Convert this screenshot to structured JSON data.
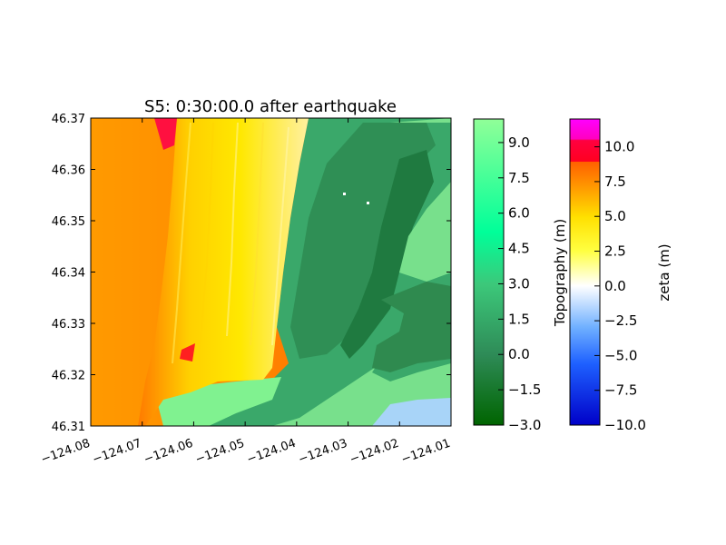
{
  "chart_data": {
    "type": "heatmap",
    "title": "S5: 0:30:00.0 after earthquake",
    "x": {
      "ticks": [
        -124.08,
        -124.07,
        -124.06,
        -124.05,
        -124.04,
        -124.03,
        -124.02,
        -124.01
      ],
      "tick_labels": [
        "−124.08",
        "−124.07",
        "−124.06",
        "−124.05",
        "−124.04",
        "−124.03",
        "−124.02",
        "−124.01"
      ],
      "range": [
        -124.08,
        -124.01
      ]
    },
    "y": {
      "ticks": [
        46.31,
        46.32,
        46.33,
        46.34,
        46.35,
        46.36,
        46.37
      ],
      "tick_labels": [
        "46.31",
        "46.32",
        "46.33",
        "46.34",
        "46.35",
        "46.36",
        "46.37"
      ],
      "range": [
        46.31,
        46.37
      ]
    },
    "colorbars": [
      {
        "label": "Topography (m)",
        "range": [
          -3.0,
          10.0
        ],
        "ticks": [
          -3.0,
          -1.5,
          0.0,
          1.5,
          3.0,
          4.5,
          6.0,
          7.5,
          9.0
        ],
        "tick_labels": [
          "−3.0",
          "−1.5",
          "0.0",
          "1.5",
          "3.0",
          "4.5",
          "6.0",
          "7.5",
          "9.0"
        ],
        "colormap": [
          "#006400",
          "#3cb371",
          "#00ff99",
          "#90ff98"
        ]
      },
      {
        "label": "zeta (m)",
        "range": [
          -10.0,
          12.0
        ],
        "ticks": [
          -10.0,
          -7.5,
          -5.0,
          -2.5,
          0.0,
          2.5,
          5.0,
          7.5,
          10.0
        ],
        "tick_labels": [
          "−10.0",
          "−7.5",
          "−5.0",
          "−2.5",
          "0.0",
          "2.5",
          "5.0",
          "7.5",
          "10.0"
        ],
        "colormap": [
          "#0000c8",
          "#1e90ff",
          "#ffffff",
          "#ffff00",
          "#ff8c00",
          "#ff0000",
          "#ff00ff"
        ]
      }
    ]
  }
}
